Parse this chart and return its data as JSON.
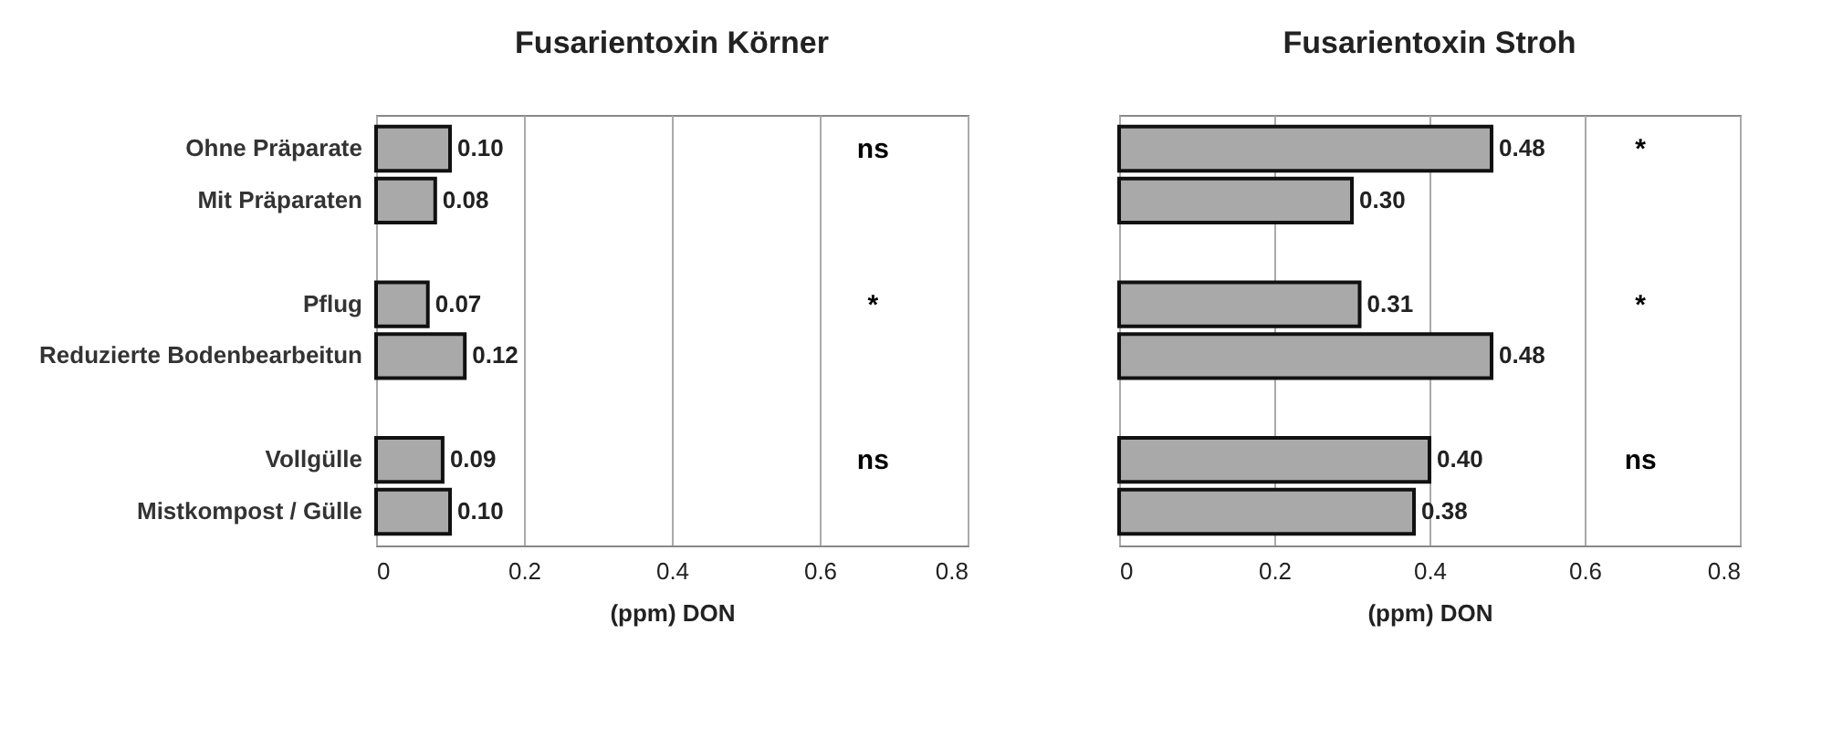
{
  "chart_data": [
    {
      "type": "bar",
      "orientation": "horizontal",
      "title": "Fusarientoxin Körner",
      "xlabel": "(ppm) DON",
      "categories": [
        "Ohne Präparate",
        "Mit Präparaten",
        null,
        "Pflug",
        "Reduzierte Bodenbearbeitun",
        null,
        "Vollgülle",
        "Mistkompost / Gülle"
      ],
      "series": [
        {
          "color": "#a9a9a9",
          "values": [
            0.1,
            0.08,
            null,
            0.07,
            0.12,
            null,
            0.09,
            0.1
          ],
          "value_labels": [
            "0.10",
            "0.08",
            null,
            "0.07",
            "0.12",
            null,
            "0.09",
            "0.10"
          ]
        }
      ],
      "xlim": [
        0,
        0.8
      ],
      "xticks": [
        0,
        0.2,
        0.4,
        0.6,
        0.8
      ],
      "grid": "x",
      "legend": false,
      "annotations": [
        "ns",
        "*",
        "ns"
      ]
    },
    {
      "type": "bar",
      "orientation": "horizontal",
      "title": "Fusarientoxin Stroh",
      "xlabel": "(ppm) DON",
      "categories": [
        null,
        null,
        null,
        null,
        null,
        null,
        null,
        null
      ],
      "series": [
        {
          "color": "#a9a9a9",
          "values": [
            0.48,
            0.3,
            null,
            0.31,
            0.48,
            null,
            0.4,
            0.38
          ],
          "value_labels": [
            "0.48",
            "0.30",
            null,
            "0.31",
            "0.48",
            null,
            "0.40",
            "0.38"
          ]
        }
      ],
      "xlim": [
        0,
        0.8
      ],
      "xticks": [
        0,
        0.2,
        0.4,
        0.6,
        0.8
      ],
      "grid": "x",
      "legend": false,
      "tick_labels": "x",
      "annotations": [
        "*",
        "*",
        "ns"
      ]
    }
  ]
}
